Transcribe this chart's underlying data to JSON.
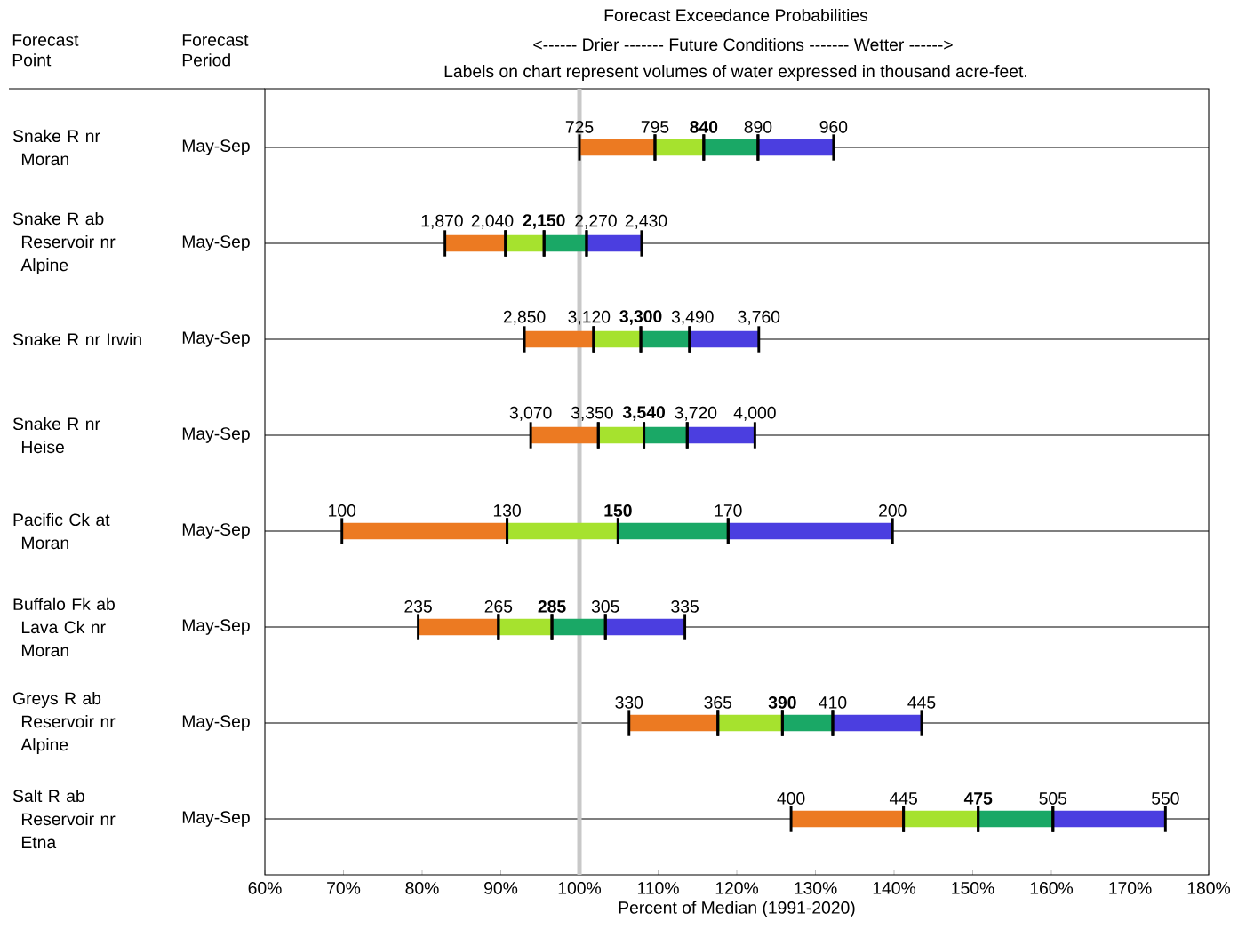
{
  "chart_data": {
    "type": "bar",
    "orientation": "horizontal",
    "title": "Forecast Exceedance Probabilities",
    "subtitle": "<------ Drier -------   Future Conditions   ------- Wetter ------>",
    "xlabel": "Percent of Median (1991-2020)",
    "categories": [
      "Snake R nr Moran",
      "Snake R ab Reservoir nr Alpine",
      "Snake R nr Irwin",
      "Snake R nr Heise",
      "Pacific Ck at Moran",
      "Buffalo Fk ab Lava Ck nr Moran",
      "Greys R ab Reservoir nr Alpine",
      "Salt R ab Reservoir nr Etna"
    ],
    "series": [
      {
        "color": "#ec7a22",
        "base": [
          100.0,
          82.9,
          93.0,
          93.8,
          69.8,
          79.5,
          106.3,
          126.9
        ],
        "values": [
          9.6,
          7.7,
          8.8,
          8.6,
          21.0,
          10.2,
          11.3,
          14.3
        ]
      },
      {
        "color": "#a6e22e",
        "base": [
          109.6,
          90.6,
          101.8,
          102.4,
          90.8,
          89.7,
          117.6,
          141.2
        ],
        "values": [
          6.2,
          4.9,
          6.0,
          5.8,
          14.1,
          6.8,
          8.2,
          9.5
        ]
      },
      {
        "color": "#1aa866",
        "base": [
          115.8,
          95.5,
          107.8,
          108.2,
          104.9,
          96.5,
          125.8,
          150.7
        ],
        "values": [
          6.9,
          5.4,
          6.2,
          5.5,
          14.0,
          6.8,
          6.4,
          9.5
        ]
      },
      {
        "color": "#4b3ee0",
        "base": [
          122.7,
          100.9,
          114.0,
          113.7,
          118.9,
          103.3,
          132.2,
          160.2
        ],
        "values": [
          9.6,
          7.0,
          8.8,
          8.6,
          20.9,
          10.1,
          11.3,
          14.3
        ]
      }
    ],
    "xlim": [
      60,
      180
    ],
    "xticks": [
      {
        "value": 60,
        "label": "60%"
      },
      {
        "value": 70,
        "label": "70%"
      },
      {
        "value": 80,
        "label": "80%"
      },
      {
        "value": 90,
        "label": "90%"
      },
      {
        "value": 100,
        "label": "100%"
      },
      {
        "value": 110,
        "label": "110%"
      },
      {
        "value": 120,
        "label": "120%"
      },
      {
        "value": 130,
        "label": "130%"
      },
      {
        "value": 140,
        "label": "140%"
      },
      {
        "value": 150,
        "label": "150%"
      },
      {
        "value": 160,
        "label": "160%"
      },
      {
        "value": 170,
        "label": "170%"
      },
      {
        "value": 180,
        "label": "180%"
      }
    ],
    "grid": "y",
    "ref_lines": [
      {
        "axis": "x",
        "value": 100,
        "color": "#c8c8c8"
      }
    ],
    "annotations": [
      "Forecast Point",
      "Forecast Period",
      "Labels on chart represent volumes of water expressed in thousand acre-feet.",
      "May-Sep",
      "May-Sep",
      "May-Sep",
      "May-Sep",
      "May-Sep",
      "May-Sep",
      "May-Sep",
      "May-Sep",
      {
        "text": "725",
        "x": 100.0,
        "y": "Snake R nr Moran"
      },
      {
        "text": "795",
        "x": 109.6,
        "y": "Snake R nr Moran"
      },
      {
        "text": "**840**",
        "x": 115.8,
        "y": "Snake R nr Moran"
      },
      {
        "text": "890",
        "x": 122.7,
        "y": "Snake R nr Moran"
      },
      {
        "text": "960",
        "x": 132.3,
        "y": "Snake R nr Moran"
      },
      {
        "text": "1,870",
        "x": 82.9,
        "y": "Snake R ab Reservoir nr Alpine"
      },
      {
        "text": "2,040",
        "x": 90.6,
        "y": "Snake R ab Reservoir nr Alpine"
      },
      {
        "text": "**2,150**",
        "x": 95.5,
        "y": "Snake R ab Reservoir nr Alpine"
      },
      {
        "text": "2,270",
        "x": 100.9,
        "y": "Snake R ab Reservoir nr Alpine"
      },
      {
        "text": "2,430",
        "x": 107.9,
        "y": "Snake R ab Reservoir nr Alpine"
      },
      {
        "text": "2,850",
        "x": 93.0,
        "y": "Snake R nr Irwin"
      },
      {
        "text": "3,120",
        "x": 101.8,
        "y": "Snake R nr Irwin"
      },
      {
        "text": "**3,300**",
        "x": 107.8,
        "y": "Snake R nr Irwin"
      },
      {
        "text": "3,490",
        "x": 114.0,
        "y": "Snake R nr Irwin"
      },
      {
        "text": "3,760",
        "x": 122.8,
        "y": "Snake R nr Irwin"
      },
      {
        "text": "3,070",
        "x": 93.8,
        "y": "Snake R nr Heise"
      },
      {
        "text": "3,350",
        "x": 102.4,
        "y": "Snake R nr Heise"
      },
      {
        "text": "**3,540**",
        "x": 108.2,
        "y": "Snake R nr Heise"
      },
      {
        "text": "3,720",
        "x": 113.7,
        "y": "Snake R nr Heise"
      },
      {
        "text": "4,000",
        "x": 122.3,
        "y": "Snake R nr Heise"
      },
      {
        "text": "100",
        "x": 69.8,
        "y": "Pacific Ck at Moran"
      },
      {
        "text": "130",
        "x": 90.8,
        "y": "Pacific Ck at Moran"
      },
      {
        "text": "**150**",
        "x": 104.9,
        "y": "Pacific Ck at Moran"
      },
      {
        "text": "170",
        "x": 118.9,
        "y": "Pacific Ck at Moran"
      },
      {
        "text": "200",
        "x": 139.8,
        "y": "Pacific Ck at Moran"
      },
      {
        "text": "235",
        "x": 79.5,
        "y": "Buffalo Fk ab Lava Ck nr Moran"
      },
      {
        "text": "265",
        "x": 89.7,
        "y": "Buffalo Fk ab Lava Ck nr Moran"
      },
      {
        "text": "**285**",
        "x": 96.5,
        "y": "Buffalo Fk ab Lava Ck nr Moran"
      },
      {
        "text": "305",
        "x": 103.3,
        "y": "Buffalo Fk ab Lava Ck nr Moran"
      },
      {
        "text": "335",
        "x": 113.4,
        "y": "Buffalo Fk ab Lava Ck nr Moran"
      },
      {
        "text": "330",
        "x": 106.3,
        "y": "Greys R ab Reservoir nr Alpine"
      },
      {
        "text": "365",
        "x": 117.6,
        "y": "Greys R ab Reservoir nr Alpine"
      },
      {
        "text": "**390**",
        "x": 125.8,
        "y": "Greys R ab Reservoir nr Alpine"
      },
      {
        "text": "410",
        "x": 132.2,
        "y": "Greys R ab Reservoir nr Alpine"
      },
      {
        "text": "445",
        "x": 143.5,
        "y": "Greys R ab Reservoir nr Alpine"
      },
      {
        "text": "400",
        "x": 126.9,
        "y": "Salt R ab Reservoir nr Etna"
      },
      {
        "text": "445",
        "x": 141.2,
        "y": "Salt R ab Reservoir nr Etna"
      },
      {
        "text": "**475**",
        "x": 150.7,
        "y": "Salt R ab Reservoir nr Etna"
      },
      {
        "text": "505",
        "x": 160.2,
        "y": "Salt R ab Reservoir nr Etna"
      },
      {
        "text": "550",
        "x": 174.5,
        "y": "Salt R ab Reservoir nr Etna"
      }
    ]
  }
}
